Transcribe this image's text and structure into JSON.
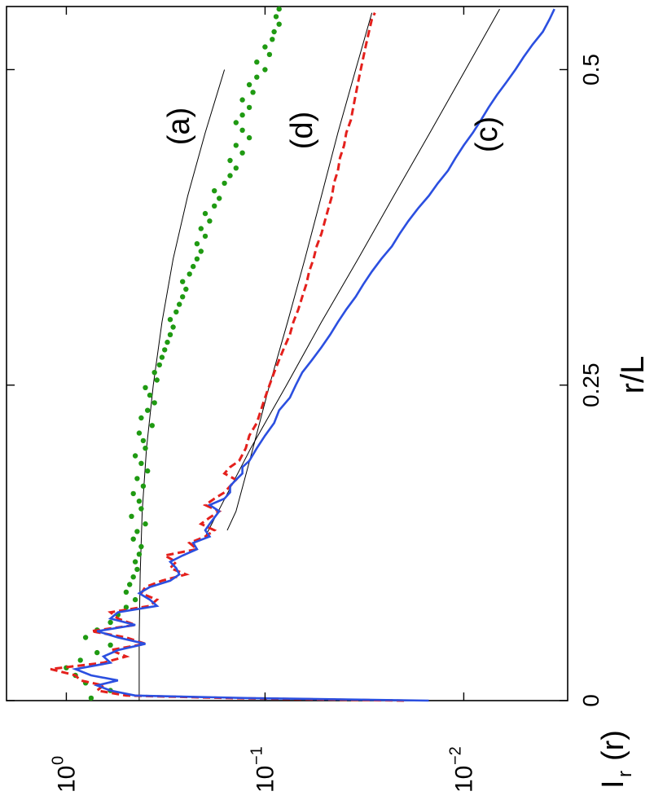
{
  "chart_data": {
    "type": "line",
    "orientation": "rotated-90",
    "xlabel": "r/L",
    "ylabel": "I_r (r)",
    "ylabel_main": "I",
    "ylabel_sub": "r",
    "ylabel_paren": "(r)",
    "xlim": [
      0,
      0.55
    ],
    "ylim": [
      0.003,
      2.0
    ],
    "y_scale": "log",
    "x_ticks": [
      {
        "value": 0,
        "label": "0"
      },
      {
        "value": 0.25,
        "label": "0.25"
      },
      {
        "value": 0.5,
        "label": "0.5"
      }
    ],
    "y_ticks": [
      {
        "value": 1.0,
        "label": "10",
        "exp": "0"
      },
      {
        "value": 0.1,
        "label": "10",
        "exp": "−1"
      },
      {
        "value": 0.01,
        "label": "10",
        "exp": "−2"
      }
    ],
    "grid": false,
    "legend": "none",
    "annotations": [
      {
        "text": "(a)",
        "x": 0.43,
        "y": 0.5
      },
      {
        "text": "(d)",
        "x": 0.43,
        "y": 0.12
      },
      {
        "text": "(c)",
        "x": 0.43,
        "y": 0.012
      }
    ],
    "series": [
      {
        "id": "a",
        "style": "dots",
        "color": "#1f9a12",
        "x": [
          0.002,
          0.008,
          0.014,
          0.02,
          0.026,
          0.032,
          0.038,
          0.044,
          0.05,
          0.056,
          0.062,
          0.068,
          0.074,
          0.08,
          0.086,
          0.092,
          0.098,
          0.104,
          0.11,
          0.116,
          0.122,
          0.128,
          0.134,
          0.14,
          0.146,
          0.152,
          0.158,
          0.164,
          0.17,
          0.176,
          0.182,
          0.188,
          0.194,
          0.2,
          0.206,
          0.212,
          0.218,
          0.224,
          0.23,
          0.236,
          0.242,
          0.248,
          0.254,
          0.26,
          0.266,
          0.272,
          0.278,
          0.284,
          0.29,
          0.296,
          0.302,
          0.308,
          0.314,
          0.32,
          0.326,
          0.332,
          0.338,
          0.344,
          0.35,
          0.356,
          0.362,
          0.368,
          0.374,
          0.38,
          0.386,
          0.392,
          0.398,
          0.404,
          0.41,
          0.416,
          0.422,
          0.428,
          0.434,
          0.44,
          0.446,
          0.452,
          0.458,
          0.464,
          0.47,
          0.476,
          0.482,
          0.488,
          0.494,
          0.5,
          0.506,
          0.512,
          0.518,
          0.524,
          0.53,
          0.536,
          0.542,
          0.548
        ],
        "y": [
          0.75,
          0.6,
          0.8,
          0.9,
          1.0,
          0.85,
          0.7,
          0.6,
          0.8,
          0.7,
          0.6,
          0.55,
          0.5,
          0.45,
          0.5,
          0.48,
          0.46,
          0.44,
          0.45,
          0.43,
          0.42,
          0.46,
          0.44,
          0.4,
          0.47,
          0.42,
          0.43,
          0.46,
          0.41,
          0.44,
          0.39,
          0.42,
          0.45,
          0.4,
          0.41,
          0.43,
          0.37,
          0.42,
          0.39,
          0.36,
          0.38,
          0.4,
          0.35,
          0.36,
          0.34,
          0.33,
          0.32,
          0.31,
          0.3,
          0.29,
          0.3,
          0.28,
          0.27,
          0.26,
          0.25,
          0.26,
          0.24,
          0.23,
          0.22,
          0.21,
          0.22,
          0.2,
          0.21,
          0.19,
          0.2,
          0.18,
          0.17,
          0.18,
          0.16,
          0.15,
          0.14,
          0.15,
          0.13,
          0.14,
          0.12,
          0.13,
          0.14,
          0.13,
          0.12,
          0.13,
          0.115,
          0.12,
          0.11,
          0.1,
          0.11,
          0.095,
          0.1,
          0.092,
          0.09,
          0.085,
          0.088,
          0.085
        ]
      },
      {
        "id": "a-fit",
        "style": "thin-line",
        "color": "#000000",
        "x": [
          0.0,
          0.05,
          0.1,
          0.15,
          0.2,
          0.25,
          0.3,
          0.35,
          0.4,
          0.45,
          0.5
        ],
        "y": [
          0.43,
          0.43,
          0.425,
          0.415,
          0.395,
          0.365,
          0.33,
          0.29,
          0.245,
          0.2,
          0.16
        ]
      },
      {
        "id": "d",
        "style": "dashed-line",
        "color": "#e4201c",
        "x": [
          0.0,
          0.002,
          0.004,
          0.008,
          0.012,
          0.016,
          0.02,
          0.025,
          0.03,
          0.035,
          0.04,
          0.045,
          0.05,
          0.055,
          0.06,
          0.065,
          0.07,
          0.075,
          0.08,
          0.085,
          0.09,
          0.095,
          0.1,
          0.105,
          0.11,
          0.115,
          0.12,
          0.125,
          0.13,
          0.135,
          0.14,
          0.145,
          0.15,
          0.155,
          0.16,
          0.165,
          0.17,
          0.175,
          0.18,
          0.185,
          0.19,
          0.2,
          0.21,
          0.22,
          0.23,
          0.24,
          0.25,
          0.26,
          0.27,
          0.28,
          0.29,
          0.3,
          0.31,
          0.32,
          0.33,
          0.34,
          0.35,
          0.36,
          0.37,
          0.38,
          0.39,
          0.4,
          0.41,
          0.42,
          0.43,
          0.44,
          0.45,
          0.46,
          0.47,
          0.48,
          0.49,
          0.5,
          0.51,
          0.52,
          0.53,
          0.54,
          0.545
        ],
        "y": [
          0.02,
          0.15,
          0.5,
          0.7,
          0.65,
          0.85,
          0.9,
          1.2,
          0.65,
          0.5,
          0.6,
          0.4,
          0.5,
          0.75,
          0.45,
          0.55,
          0.6,
          0.38,
          0.35,
          0.42,
          0.4,
          0.33,
          0.25,
          0.3,
          0.28,
          0.32,
          0.22,
          0.24,
          0.2,
          0.18,
          0.21,
          0.19,
          0.17,
          0.2,
          0.18,
          0.16,
          0.15,
          0.14,
          0.16,
          0.15,
          0.135,
          0.125,
          0.12,
          0.11,
          0.105,
          0.1,
          0.095,
          0.09,
          0.085,
          0.08,
          0.075,
          0.072,
          0.068,
          0.065,
          0.062,
          0.06,
          0.057,
          0.055,
          0.052,
          0.05,
          0.048,
          0.046,
          0.045,
          0.043,
          0.042,
          0.04,
          0.039,
          0.037,
          0.036,
          0.035,
          0.034,
          0.033,
          0.032,
          0.031,
          0.03,
          0.029,
          0.028
        ]
      },
      {
        "id": "d-fit",
        "style": "thin-line",
        "color": "#000000",
        "x": [
          0.135,
          0.15,
          0.2,
          0.25,
          0.3,
          0.35,
          0.4,
          0.45,
          0.5,
          0.545
        ],
        "y": [
          0.155,
          0.14,
          0.115,
          0.095,
          0.077,
          0.063,
          0.052,
          0.043,
          0.035,
          0.029
        ]
      },
      {
        "id": "c",
        "style": "solid-line",
        "color": "#2b4fe0",
        "x": [
          0.0,
          0.002,
          0.004,
          0.008,
          0.012,
          0.016,
          0.02,
          0.025,
          0.03,
          0.035,
          0.04,
          0.045,
          0.05,
          0.055,
          0.06,
          0.065,
          0.07,
          0.075,
          0.08,
          0.085,
          0.09,
          0.095,
          0.1,
          0.105,
          0.11,
          0.115,
          0.12,
          0.125,
          0.13,
          0.135,
          0.14,
          0.145,
          0.15,
          0.155,
          0.16,
          0.165,
          0.17,
          0.175,
          0.18,
          0.185,
          0.19,
          0.2,
          0.21,
          0.22,
          0.23,
          0.24,
          0.25,
          0.26,
          0.27,
          0.28,
          0.29,
          0.3,
          0.31,
          0.32,
          0.33,
          0.34,
          0.35,
          0.36,
          0.37,
          0.38,
          0.39,
          0.4,
          0.41,
          0.42,
          0.43,
          0.44,
          0.45,
          0.46,
          0.47,
          0.48,
          0.49,
          0.5,
          0.51,
          0.52,
          0.53,
          0.54,
          0.548
        ],
        "y": [
          0.015,
          0.12,
          0.45,
          0.6,
          0.7,
          0.55,
          0.75,
          0.9,
          0.6,
          0.65,
          0.55,
          0.4,
          0.55,
          0.7,
          0.45,
          0.6,
          0.55,
          0.35,
          0.38,
          0.43,
          0.38,
          0.3,
          0.27,
          0.28,
          0.3,
          0.26,
          0.22,
          0.23,
          0.19,
          0.2,
          0.19,
          0.18,
          0.17,
          0.19,
          0.16,
          0.15,
          0.15,
          0.14,
          0.13,
          0.13,
          0.12,
          0.11,
          0.1,
          0.09,
          0.085,
          0.075,
          0.07,
          0.065,
          0.058,
          0.052,
          0.047,
          0.043,
          0.039,
          0.035,
          0.032,
          0.029,
          0.026,
          0.023,
          0.021,
          0.019,
          0.017,
          0.015,
          0.0135,
          0.012,
          0.011,
          0.01,
          0.009,
          0.0082,
          0.0075,
          0.0068,
          0.0061,
          0.0055,
          0.005,
          0.0045,
          0.004,
          0.0037,
          0.0035
        ]
      },
      {
        "id": "c-fit",
        "style": "thin-line",
        "color": "#000000",
        "x": [
          0.13,
          0.2,
          0.25,
          0.3,
          0.35,
          0.4,
          0.45,
          0.5,
          0.548
        ],
        "y": [
          0.2,
          0.118,
          0.078,
          0.052,
          0.034,
          0.0225,
          0.0148,
          0.0098,
          0.0066
        ]
      }
    ]
  }
}
